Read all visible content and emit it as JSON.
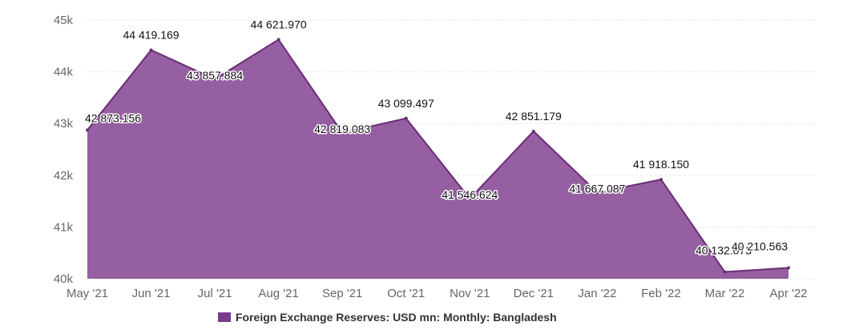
{
  "chart_data": {
    "type": "area",
    "categories": [
      "May '21",
      "Jun '21",
      "Jul '21",
      "Aug '21",
      "Sep '21",
      "Oct '21",
      "Nov '21",
      "Dec '21",
      "Jan '22",
      "Feb '22",
      "Mar '22",
      "Apr '22"
    ],
    "series": [
      {
        "name": "Foreign Exchange Reserves: USD mn: Monthly: Bangladesh",
        "values": [
          42873.156,
          44419.169,
          43857.884,
          44621.97,
          42819.083,
          43099.497,
          41546.624,
          42851.179,
          41667.087,
          41918.15,
          40132.073,
          40210.563
        ],
        "labels": [
          "42 873.156",
          "44 419.169",
          "43 857.884",
          "44 621.970",
          "42 819.083",
          "43 099.497",
          "41 546.624",
          "42 851.179",
          "41 667.087",
          "41 918.150",
          "40 132.073",
          "40 210.563"
        ]
      }
    ],
    "y_ticks": [
      40000,
      41000,
      42000,
      43000,
      44000,
      45000
    ],
    "y_tick_labels": [
      "40k",
      "41k",
      "42k",
      "43k",
      "44k",
      "45k"
    ],
    "ylim": [
      40000,
      45000
    ],
    "grid": true,
    "legend_position": "bottom",
    "colors": {
      "fill": "#955fa1",
      "line": "#6b2c78",
      "grid": "#e6e6e6",
      "swatch": "#7a3c8c"
    }
  }
}
